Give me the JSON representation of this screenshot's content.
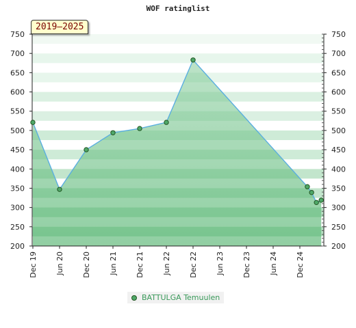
{
  "chart_data": {
    "type": "area",
    "title": "WOF ratinglist",
    "period_badge": "2019–2025",
    "y_ticks": [
      "200",
      "250",
      "300",
      "350",
      "400",
      "450",
      "500",
      "550",
      "600",
      "650",
      "700",
      "750"
    ],
    "ylim": [
      200,
      750
    ],
    "x_ticks": [
      "Dec 19",
      "Jun 20",
      "Dec 20",
      "Jun 21",
      "Dec 21",
      "Jun 22",
      "Dec 22",
      "Jun 23",
      "Dec 23",
      "Jun 24",
      "Dec 24"
    ],
    "x": [
      0,
      1,
      2,
      3,
      4,
      5,
      6,
      10.28,
      10.44,
      10.62,
      10.8
    ],
    "values": [
      521,
      347,
      450,
      494,
      505,
      521,
      683,
      354,
      339,
      313,
      319
    ],
    "series": [
      {
        "name": "BATTULGA Temuulen"
      }
    ],
    "colors": {
      "line": "#5aaee0",
      "marker": "#4fa868",
      "marker_edge": "#225522",
      "fill_top": "#e6f4ea",
      "fill_dark": "#78c48e"
    },
    "legend_position": "bottom"
  }
}
